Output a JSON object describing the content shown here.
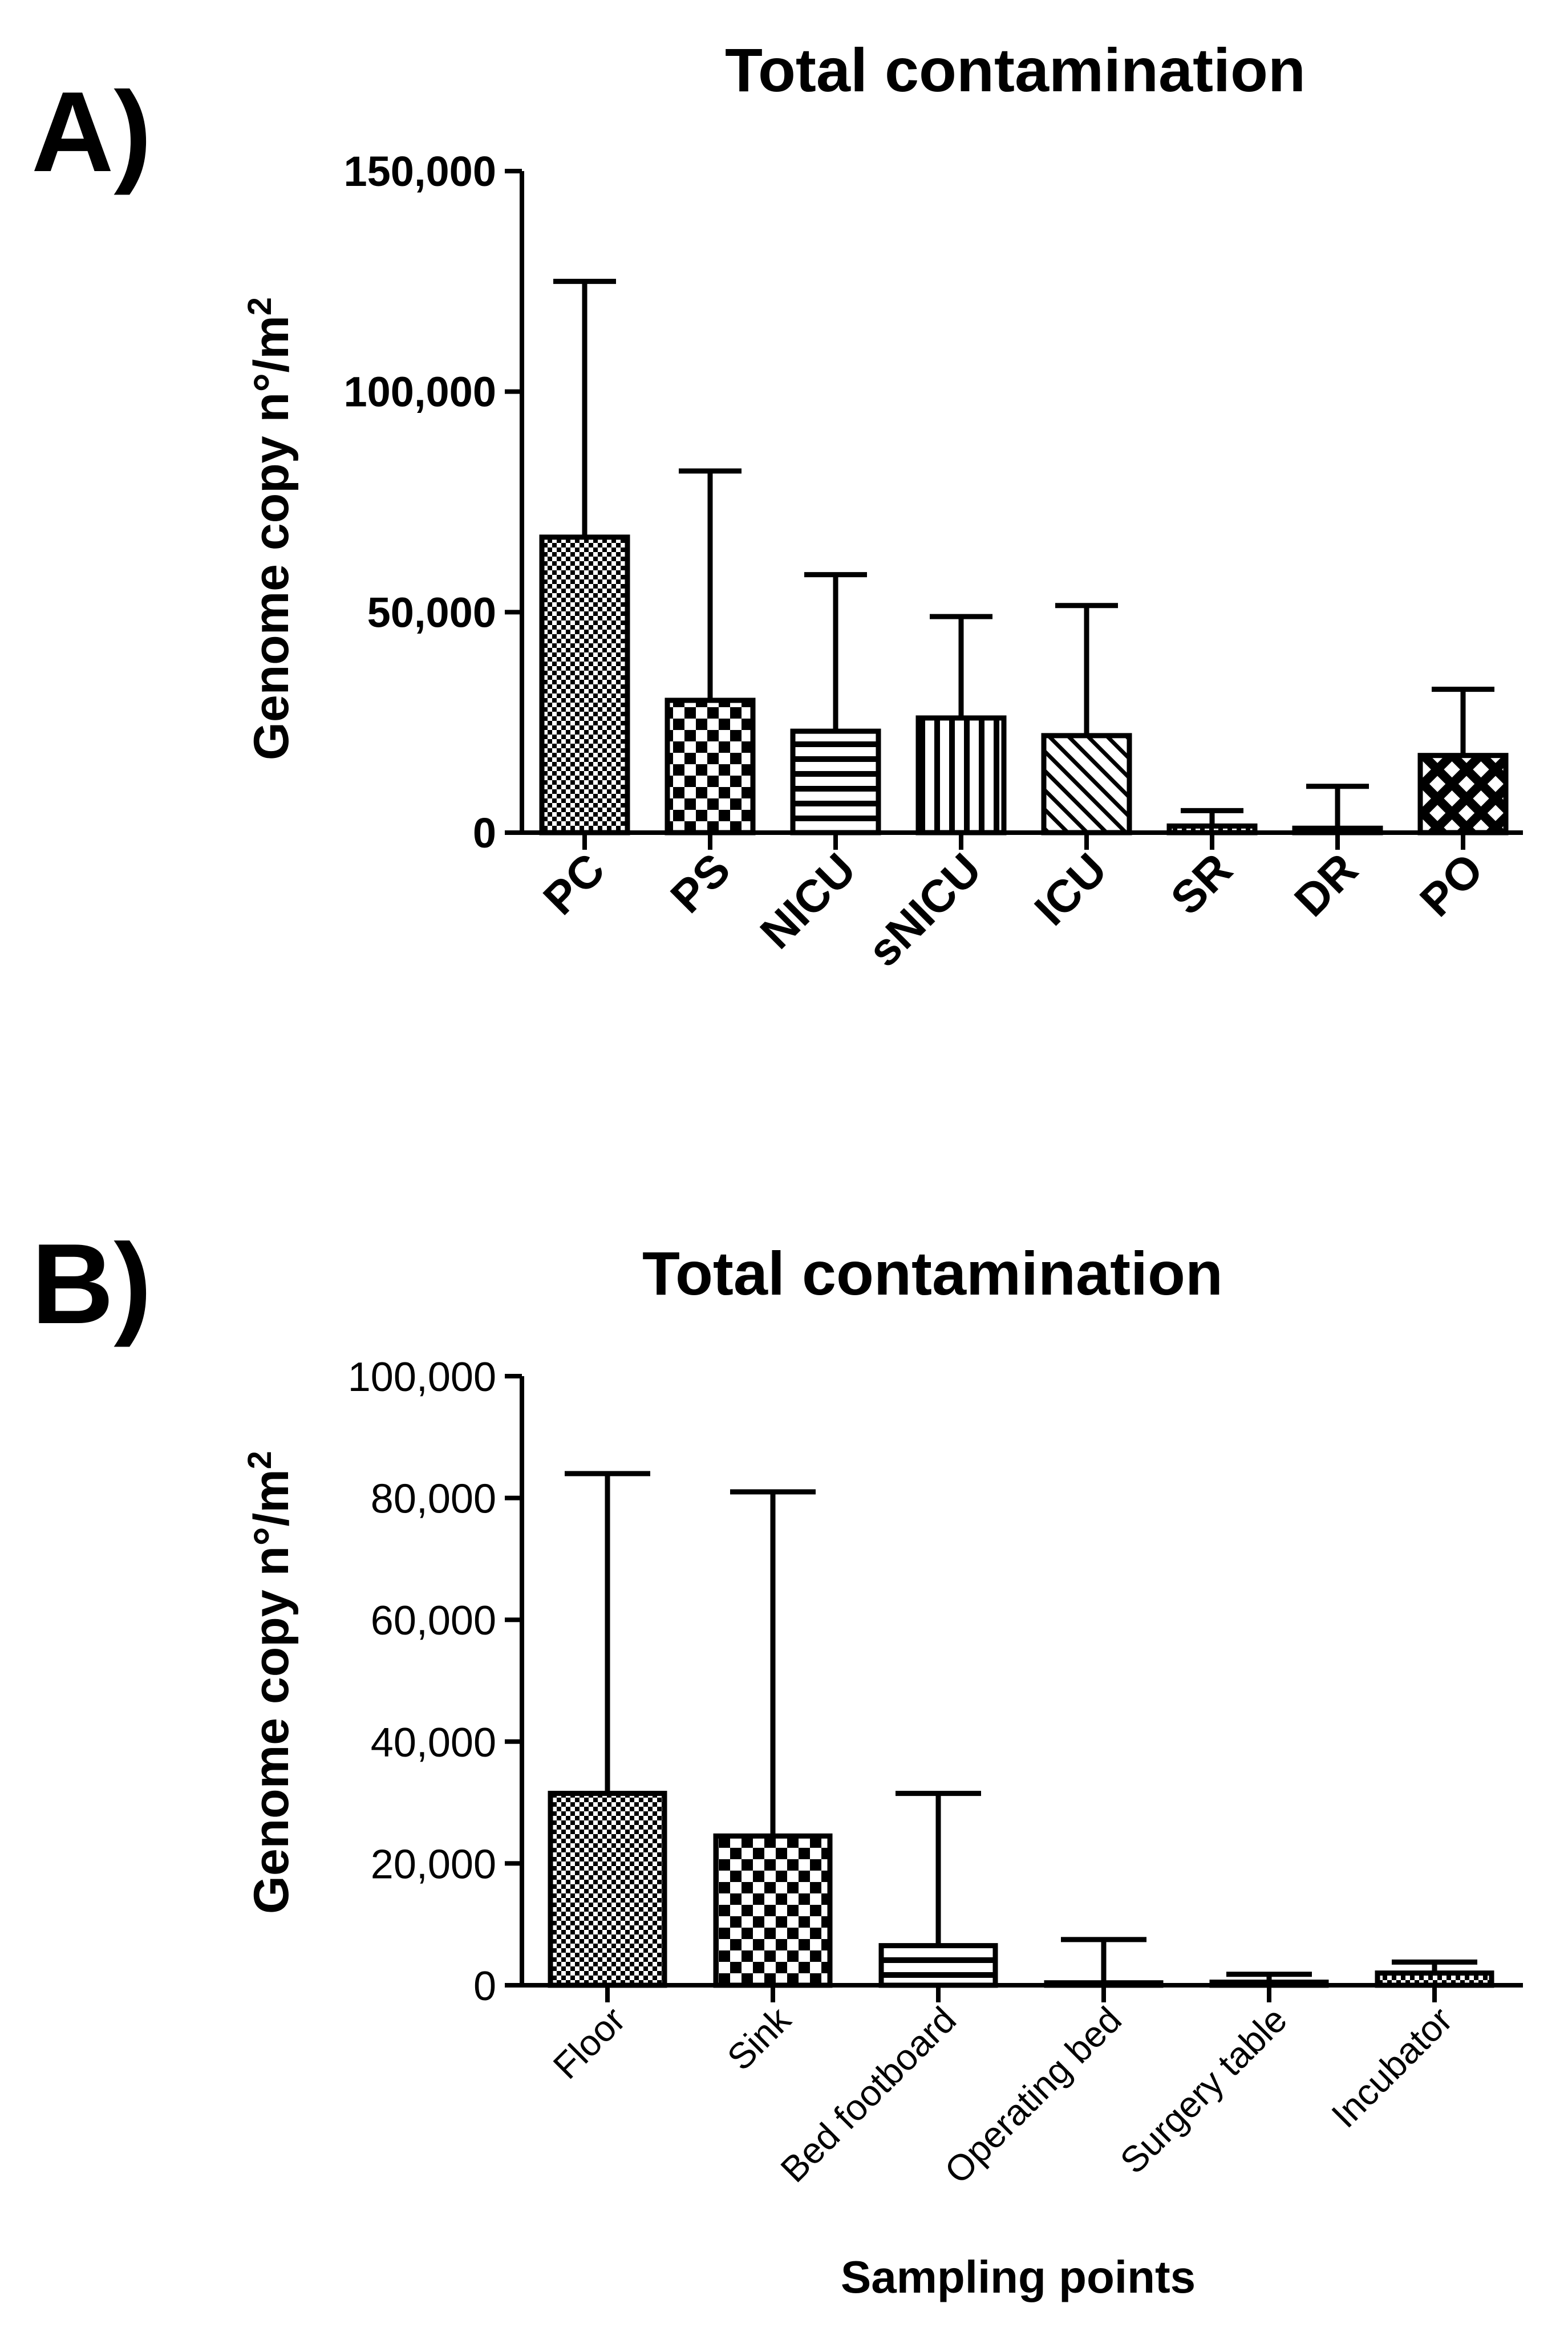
{
  "panel_labels": {
    "a": "A)",
    "b": "B)"
  },
  "chart_data": [
    {
      "type": "bar",
      "panel": "A)",
      "title": "Total contamination",
      "ylabel": "Genome copy n°/m²",
      "ylabel_main": "Genome copy n°/m",
      "ylabel_sup": "2",
      "xlabel": "",
      "ylim": [
        0,
        150000
      ],
      "yticks": [
        0,
        50000,
        100000,
        150000
      ],
      "ytick_labels": [
        "0",
        "50,000",
        "100,000",
        "150,000"
      ],
      "categories": [
        "PC",
        "PS",
        "NICU",
        "sNICU",
        "ICU",
        "SR",
        "DR",
        "PO"
      ],
      "values": [
        67000,
        30000,
        23000,
        26000,
        22000,
        1500,
        1000,
        17500
      ],
      "error_upper": [
        125000,
        82000,
        58500,
        49000,
        51500,
        5000,
        10500,
        32500
      ],
      "patterns": [
        "fine-check",
        "checker",
        "horizontal",
        "vertical",
        "diagonal",
        "fine-check",
        "fine-check",
        "crosshatch"
      ],
      "grid": false
    },
    {
      "type": "bar",
      "panel": "B)",
      "title": "Total contamination",
      "ylabel": "Genome copy n°/m²",
      "ylabel_main": "Genome copy n°/m",
      "ylabel_sup": "2",
      "xlabel": "Sampling points",
      "ylim": [
        0,
        100000
      ],
      "yticks": [
        0,
        20000,
        40000,
        60000,
        80000,
        100000
      ],
      "ytick_labels": [
        "0",
        "20,000",
        "40,000",
        "60,000",
        "80,000",
        "100,000"
      ],
      "categories": [
        "Floor",
        "Sink",
        "Bed footboard",
        "Operating bed",
        "Surgery table",
        "Incubator"
      ],
      "values": [
        31500,
        24500,
        6500,
        400,
        500,
        2000
      ],
      "error_upper": [
        84000,
        81000,
        31500,
        7500,
        1800,
        3800
      ],
      "patterns": [
        "fine-check",
        "checker",
        "horizontal",
        "fine-check",
        "fine-check",
        "fine-check"
      ],
      "grid": false
    }
  ]
}
